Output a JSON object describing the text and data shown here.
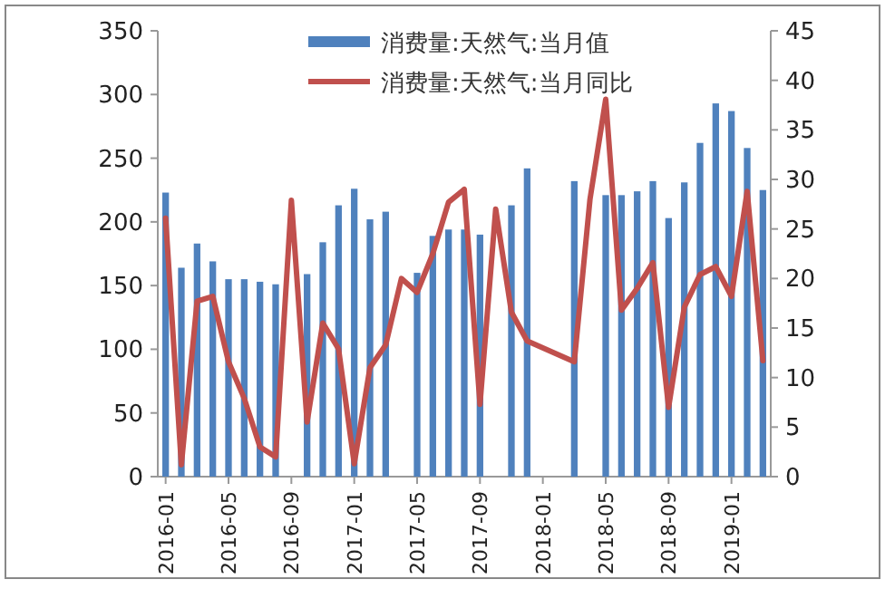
{
  "chart_data": {
    "type": "bar",
    "categories": [
      "2016-01",
      null,
      null,
      null,
      "2016-05",
      null,
      null,
      null,
      "2016-09",
      null,
      null,
      null,
      "2017-01",
      null,
      null,
      null,
      "2017-05",
      null,
      null,
      null,
      "2017-09",
      null,
      null,
      null,
      "2018-01",
      null,
      null,
      null,
      "2018-05",
      null,
      null,
      null,
      "2018-09",
      null,
      null,
      null,
      "2019-01",
      null,
      null
    ],
    "series": [
      {
        "name": "消费量:天然气:当月值",
        "color": "#4f81bd",
        "values": [
          223,
          164,
          183,
          169,
          155,
          155,
          153,
          151,
          null,
          159,
          184,
          213,
          226,
          202,
          208,
          null,
          160,
          189,
          194,
          194,
          190,
          null,
          213,
          242,
          null,
          null,
          232,
          null,
          221,
          221,
          224,
          232,
          203,
          231,
          262,
          293,
          287,
          258,
          225
        ]
      },
      {
        "name": "消费量:天然气:当月同比",
        "type": "line",
        "axis": "y2",
        "color": "#c0504d",
        "values": [
          26.1,
          1.2,
          17.7,
          18.2,
          11.6,
          7.9,
          3.0,
          2.0,
          27.9,
          5.5,
          15.5,
          12.9,
          1.3,
          11.0,
          13.3,
          20.0,
          18.6,
          22.5,
          27.7,
          29.0,
          7.3,
          27.0,
          16.6,
          13.7,
          null,
          null,
          11.6,
          28.0,
          38.1,
          16.8,
          19.0,
          21.6,
          7.0,
          17.1,
          20.4,
          21.2,
          18.2,
          28.8,
          11.7
        ]
      }
    ],
    "ylim": [
      0,
      350
    ],
    "yticks": [
      0,
      50,
      100,
      150,
      200,
      250,
      300,
      350
    ],
    "y2lim": [
      0,
      45
    ],
    "y2ticks": [
      0,
      5,
      10,
      15,
      20,
      25,
      30,
      35,
      40,
      45
    ],
    "legend": "top",
    "grid": false
  }
}
